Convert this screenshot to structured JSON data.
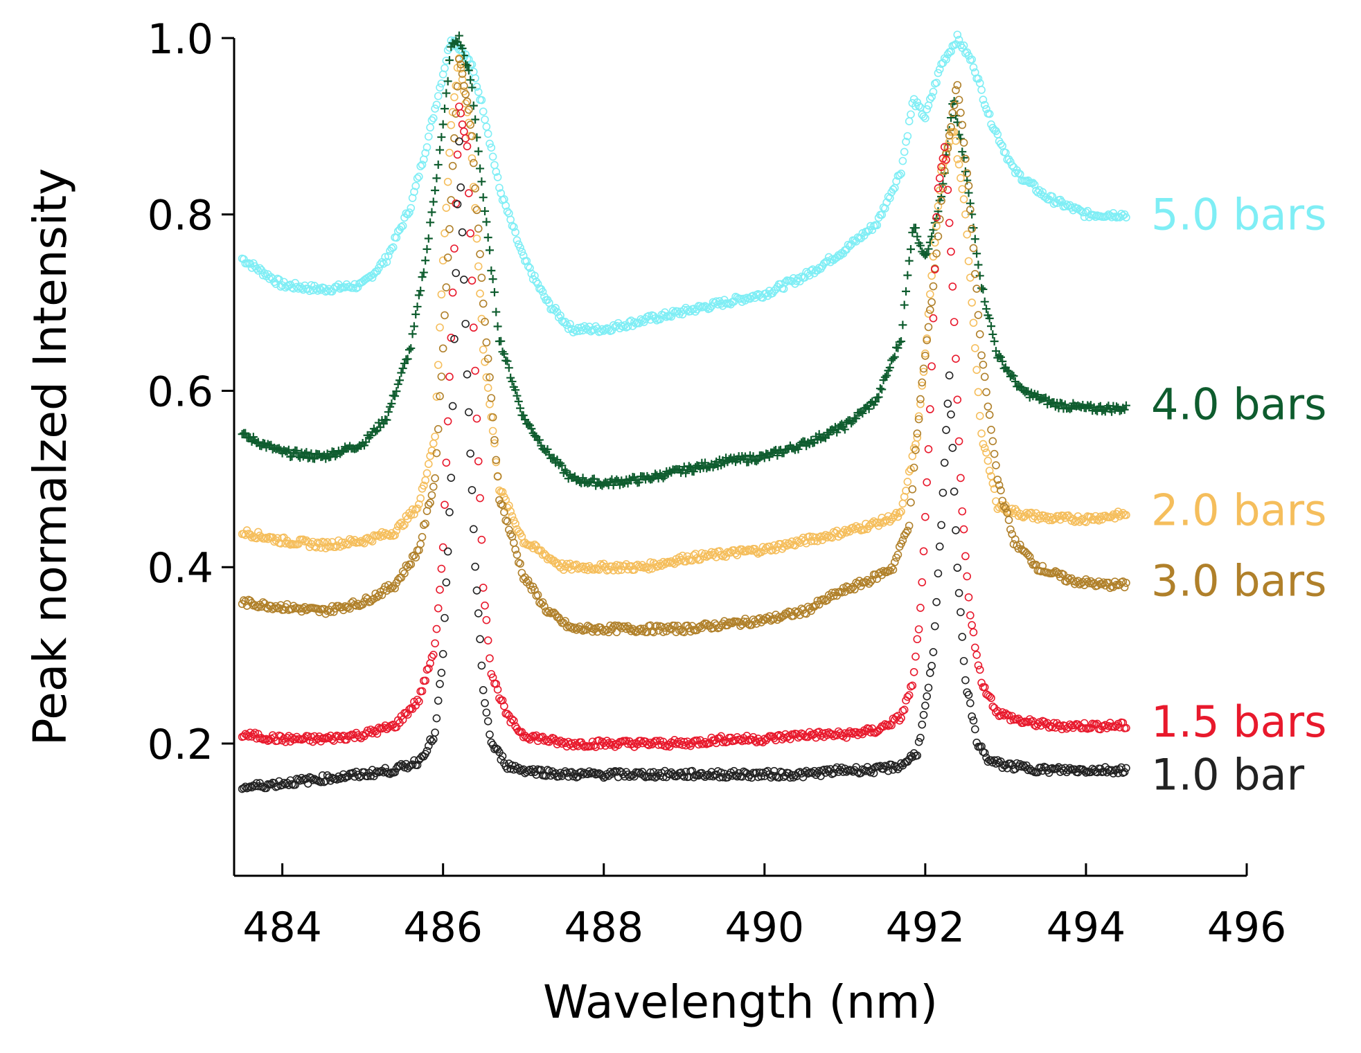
{
  "chart_data": {
    "type": "scatter",
    "title": "",
    "xlabel": "Wavelength (nm)",
    "ylabel": "Peak normalzed Intensity",
    "xlim": [
      483.4,
      496
    ],
    "ylim": [
      0.05,
      1.0
    ],
    "x_ticks": [
      484,
      486,
      488,
      490,
      492,
      494,
      496
    ],
    "x_tick_labels": [
      "484",
      "486",
      "488",
      "490",
      "492",
      "494",
      "496"
    ],
    "y_ticks": [
      0.2,
      0.4,
      0.6,
      0.8,
      1.0
    ],
    "y_tick_labels": [
      "0.2",
      "0.4",
      "0.6",
      "0.8",
      "1.0"
    ],
    "grid": false,
    "legend_placement": "right, inline at end of each series",
    "series": [
      {
        "name": "5.0 bars",
        "color": "#7FEEF5",
        "marker": "circle",
        "x": [
          483.5,
          484.0,
          484.5,
          485.0,
          485.3,
          485.6,
          485.8,
          486.0,
          486.1,
          486.2,
          486.35,
          486.5,
          486.7,
          487.0,
          487.3,
          487.6,
          488.0,
          488.5,
          489.0,
          489.5,
          490.0,
          490.5,
          491.0,
          491.4,
          491.7,
          491.85,
          492.0,
          492.2,
          492.4,
          492.6,
          492.8,
          493.1,
          493.5,
          494.0,
          494.5
        ],
        "y": [
          0.75,
          0.72,
          0.715,
          0.72,
          0.75,
          0.81,
          0.88,
          0.96,
          1.0,
          0.99,
          0.97,
          0.92,
          0.83,
          0.75,
          0.7,
          0.67,
          0.67,
          0.68,
          0.69,
          0.7,
          0.71,
          0.73,
          0.76,
          0.79,
          0.85,
          0.93,
          0.91,
          0.97,
          1.0,
          0.97,
          0.91,
          0.85,
          0.82,
          0.8,
          0.8
        ]
      },
      {
        "name": "4.0 bars",
        "color": "#0E5C2E",
        "marker": "plus",
        "x": [
          483.5,
          484.0,
          484.5,
          485.0,
          485.3,
          485.6,
          485.8,
          486.0,
          486.1,
          486.2,
          486.35,
          486.5,
          486.7,
          487.0,
          487.3,
          487.6,
          488.0,
          488.5,
          489.0,
          489.5,
          490.0,
          490.5,
          491.0,
          491.4,
          491.7,
          491.85,
          492.0,
          492.2,
          492.35,
          492.5,
          492.7,
          492.9,
          493.2,
          493.6,
          494.0,
          494.5
        ],
        "y": [
          0.55,
          0.53,
          0.525,
          0.54,
          0.57,
          0.65,
          0.76,
          0.9,
          0.99,
          1.0,
          0.95,
          0.82,
          0.66,
          0.57,
          0.53,
          0.5,
          0.495,
          0.5,
          0.51,
          0.52,
          0.525,
          0.54,
          0.56,
          0.59,
          0.66,
          0.79,
          0.75,
          0.82,
          0.93,
          0.85,
          0.72,
          0.64,
          0.6,
          0.585,
          0.58,
          0.58
        ]
      },
      {
        "name": "2.0 bars",
        "color": "#F5BE5C",
        "marker": "circle",
        "x": [
          483.5,
          484.0,
          484.5,
          485.0,
          485.4,
          485.7,
          485.9,
          486.0,
          486.1,
          486.2,
          486.35,
          486.5,
          486.7,
          487.0,
          487.5,
          488.0,
          488.5,
          489.0,
          489.5,
          490.0,
          490.5,
          491.0,
          491.4,
          491.7,
          491.9,
          492.0,
          492.1,
          492.2,
          492.35,
          492.5,
          492.7,
          492.9,
          493.2,
          493.6,
          494.0,
          494.5
        ],
        "y": [
          0.44,
          0.43,
          0.425,
          0.43,
          0.44,
          0.47,
          0.55,
          0.75,
          0.9,
          0.98,
          0.88,
          0.65,
          0.49,
          0.43,
          0.4,
          0.4,
          0.4,
          0.41,
          0.415,
          0.42,
          0.43,
          0.44,
          0.45,
          0.46,
          0.55,
          0.64,
          0.75,
          0.85,
          0.9,
          0.8,
          0.55,
          0.47,
          0.46,
          0.455,
          0.455,
          0.46
        ]
      },
      {
        "name": "3.0 bars",
        "color": "#B0802A",
        "marker": "circle",
        "x": [
          483.5,
          484.0,
          484.5,
          485.0,
          485.4,
          485.7,
          485.9,
          486.0,
          486.1,
          486.2,
          486.35,
          486.5,
          486.7,
          487.0,
          487.3,
          487.6,
          488.0,
          488.5,
          489.0,
          489.5,
          490.0,
          490.5,
          490.9,
          491.3,
          491.6,
          491.8,
          491.95,
          492.1,
          492.25,
          492.4,
          492.55,
          492.7,
          492.9,
          493.1,
          493.4,
          493.8,
          494.2,
          494.5
        ],
        "y": [
          0.36,
          0.355,
          0.35,
          0.36,
          0.38,
          0.42,
          0.5,
          0.65,
          0.82,
          0.98,
          0.9,
          0.7,
          0.48,
          0.39,
          0.35,
          0.33,
          0.33,
          0.33,
          0.33,
          0.335,
          0.34,
          0.35,
          0.37,
          0.385,
          0.4,
          0.45,
          0.6,
          0.72,
          0.86,
          0.95,
          0.82,
          0.64,
          0.5,
          0.43,
          0.4,
          0.385,
          0.38,
          0.38
        ]
      },
      {
        "name": "1.5 bars",
        "color": "#E8192C",
        "marker": "circle",
        "x": [
          483.5,
          484.0,
          484.5,
          485.0,
          485.4,
          485.7,
          485.9,
          486.0,
          486.1,
          486.2,
          486.3,
          486.4,
          486.5,
          486.6,
          486.8,
          487.0,
          487.5,
          488.0,
          488.5,
          489.0,
          489.5,
          490.0,
          490.5,
          491.0,
          491.4,
          491.7,
          491.85,
          491.95,
          492.05,
          492.15,
          492.25,
          492.35,
          492.45,
          492.55,
          492.7,
          492.9,
          493.2,
          493.6,
          494.0,
          494.5
        ],
        "y": [
          0.21,
          0.205,
          0.205,
          0.21,
          0.22,
          0.25,
          0.31,
          0.42,
          0.66,
          0.92,
          0.88,
          0.62,
          0.38,
          0.28,
          0.23,
          0.21,
          0.2,
          0.2,
          0.2,
          0.2,
          0.205,
          0.205,
          0.21,
          0.21,
          0.215,
          0.23,
          0.27,
          0.36,
          0.55,
          0.82,
          0.88,
          0.7,
          0.48,
          0.35,
          0.27,
          0.235,
          0.225,
          0.22,
          0.22,
          0.22
        ]
      },
      {
        "name": "1.0 bar",
        "color": "#222222",
        "marker": "circle",
        "x": [
          483.5,
          484.0,
          484.5,
          485.0,
          485.4,
          485.7,
          485.9,
          486.0,
          486.1,
          486.15,
          486.2,
          486.3,
          486.4,
          486.5,
          486.6,
          486.8,
          487.0,
          487.5,
          488.0,
          488.5,
          489.0,
          489.5,
          490.0,
          490.5,
          491.0,
          491.4,
          491.7,
          491.9,
          492.0,
          492.1,
          492.2,
          492.3,
          492.4,
          492.5,
          492.65,
          492.8,
          493.0,
          493.5,
          494.0,
          494.5
        ],
        "y": [
          0.15,
          0.155,
          0.16,
          0.165,
          0.17,
          0.18,
          0.21,
          0.3,
          0.5,
          0.7,
          0.88,
          0.62,
          0.4,
          0.26,
          0.2,
          0.175,
          0.17,
          0.165,
          0.165,
          0.165,
          0.165,
          0.165,
          0.165,
          0.165,
          0.17,
          0.17,
          0.175,
          0.19,
          0.24,
          0.3,
          0.45,
          0.62,
          0.4,
          0.27,
          0.2,
          0.18,
          0.175,
          0.17,
          0.17,
          0.17
        ]
      }
    ]
  }
}
